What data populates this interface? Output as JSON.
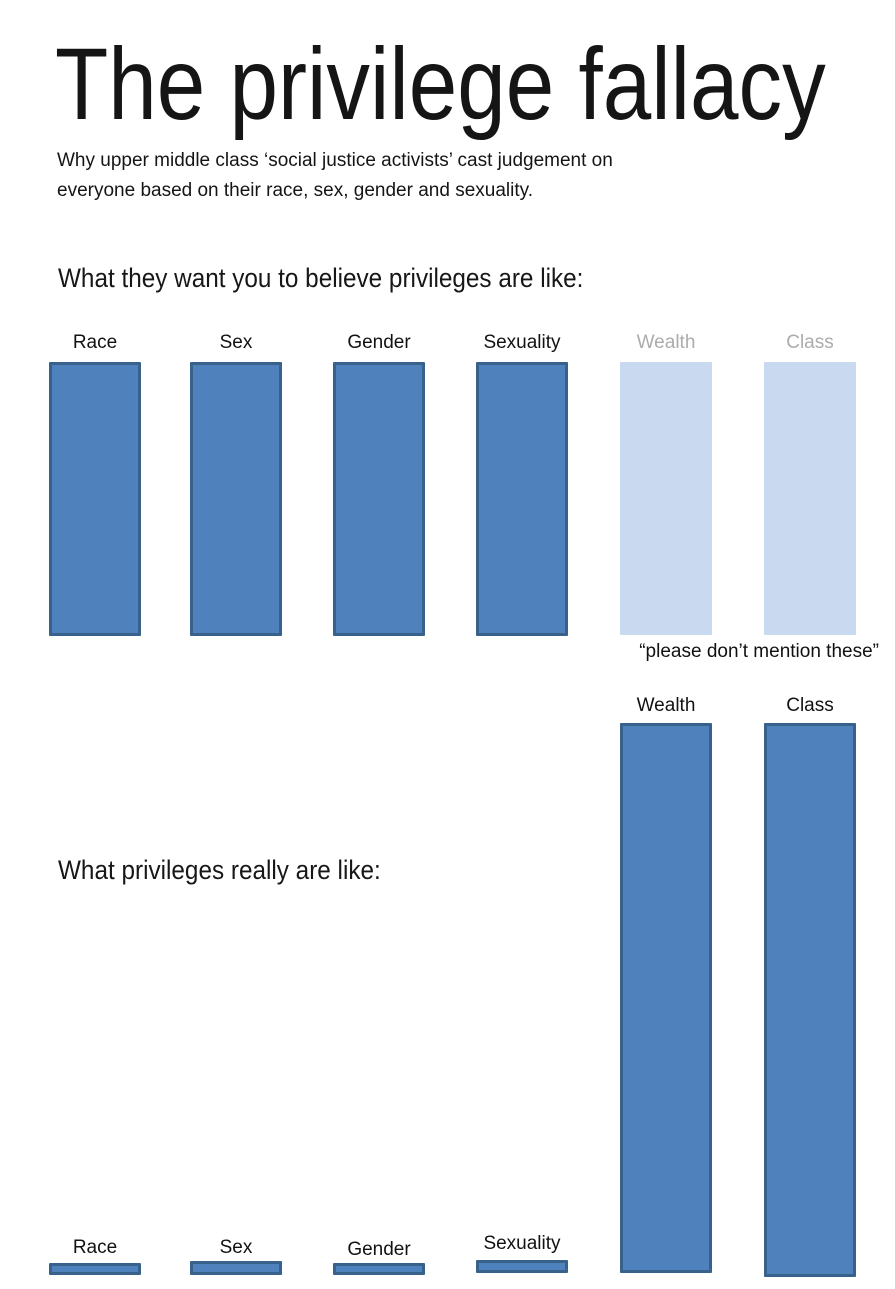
{
  "header": {
    "title": "The privilege fallacy",
    "subtitle_line1": "Why upper middle class ‘social justice activists’ cast judgement on",
    "subtitle_line2": "everyone based on their race, sex, gender and sexuality."
  },
  "colors": {
    "bar_fill": "#4F81BD",
    "bar_border": "#38618C",
    "deemphasized_bar_fill": "#C8D9F0",
    "deemphasized_label_text": "#ACACAC",
    "text": "#111111",
    "background": "#FFFFFF"
  },
  "chart_data": [
    {
      "type": "bar",
      "title": "What they want you to believe privileges are like:",
      "categories": [
        "Race",
        "Sex",
        "Gender",
        "Sexuality",
        "Wealth",
        "Class"
      ],
      "values": [
        100,
        100,
        100,
        100,
        100,
        100
      ],
      "deemphasized_categories": [
        "Wealth",
        "Class"
      ],
      "annotation": "“please don’t mention these”",
      "ylim": [
        0,
        100
      ],
      "grid": false,
      "legend": false,
      "xlabel": "",
      "ylabel": ""
    },
    {
      "type": "bar",
      "title": "What privileges really are like:",
      "categories": [
        "Race",
        "Sex",
        "Gender",
        "Sexuality",
        "Wealth",
        "Class"
      ],
      "values": [
        2,
        2,
        2,
        2,
        100,
        100
      ],
      "ylim": [
        0,
        100
      ],
      "grid": false,
      "legend": false,
      "xlabel": "",
      "ylabel": ""
    }
  ]
}
